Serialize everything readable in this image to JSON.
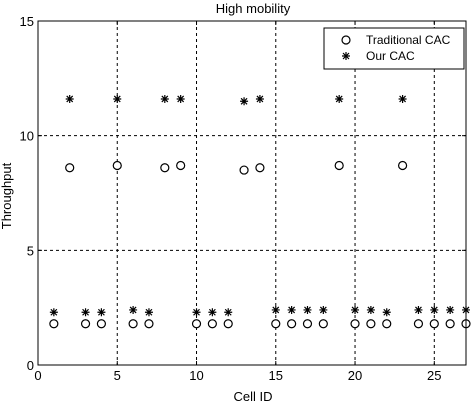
{
  "chart_data": {
    "type": "scatter",
    "title": "High mobility",
    "xlabel": "Cell ID",
    "ylabel": "Throughput",
    "xlim": [
      0,
      27
    ],
    "ylim": [
      0,
      15
    ],
    "xticks": [
      0,
      5,
      10,
      15,
      20,
      25
    ],
    "yticks": [
      0,
      5,
      10,
      15
    ],
    "grid": true,
    "legend_position": "top-right",
    "series": [
      {
        "name": "Traditional CAC",
        "marker": "circle",
        "points": [
          {
            "x": 1,
            "y": 1.8
          },
          {
            "x": 2,
            "y": 8.6
          },
          {
            "x": 3,
            "y": 1.8
          },
          {
            "x": 4,
            "y": 1.8
          },
          {
            "x": 5,
            "y": 8.7
          },
          {
            "x": 6,
            "y": 1.8
          },
          {
            "x": 7,
            "y": 1.8
          },
          {
            "x": 8,
            "y": 8.6
          },
          {
            "x": 9,
            "y": 8.7
          },
          {
            "x": 10,
            "y": 1.8
          },
          {
            "x": 11,
            "y": 1.8
          },
          {
            "x": 12,
            "y": 1.8
          },
          {
            "x": 13,
            "y": 8.5
          },
          {
            "x": 14,
            "y": 8.6
          },
          {
            "x": 15,
            "y": 1.8
          },
          {
            "x": 16,
            "y": 1.8
          },
          {
            "x": 17,
            "y": 1.8
          },
          {
            "x": 18,
            "y": 1.8
          },
          {
            "x": 19,
            "y": 8.7
          },
          {
            "x": 20,
            "y": 1.8
          },
          {
            "x": 21,
            "y": 1.8
          },
          {
            "x": 22,
            "y": 1.8
          },
          {
            "x": 23,
            "y": 8.7
          },
          {
            "x": 24,
            "y": 1.8
          },
          {
            "x": 25,
            "y": 1.8
          },
          {
            "x": 26,
            "y": 1.8
          },
          {
            "x": 27,
            "y": 1.8
          }
        ]
      },
      {
        "name": "Our CAC",
        "marker": "star",
        "points": [
          {
            "x": 1,
            "y": 2.3
          },
          {
            "x": 2,
            "y": 11.6
          },
          {
            "x": 3,
            "y": 2.3
          },
          {
            "x": 4,
            "y": 2.3
          },
          {
            "x": 5,
            "y": 11.6
          },
          {
            "x": 6,
            "y": 2.4
          },
          {
            "x": 7,
            "y": 2.3
          },
          {
            "x": 8,
            "y": 11.6
          },
          {
            "x": 9,
            "y": 11.6
          },
          {
            "x": 10,
            "y": 2.3
          },
          {
            "x": 11,
            "y": 2.3
          },
          {
            "x": 12,
            "y": 2.3
          },
          {
            "x": 13,
            "y": 11.5
          },
          {
            "x": 14,
            "y": 11.6
          },
          {
            "x": 15,
            "y": 2.4
          },
          {
            "x": 16,
            "y": 2.4
          },
          {
            "x": 17,
            "y": 2.4
          },
          {
            "x": 18,
            "y": 2.4
          },
          {
            "x": 19,
            "y": 11.6
          },
          {
            "x": 20,
            "y": 2.4
          },
          {
            "x": 21,
            "y": 2.4
          },
          {
            "x": 22,
            "y": 2.3
          },
          {
            "x": 23,
            "y": 11.6
          },
          {
            "x": 24,
            "y": 2.4
          },
          {
            "x": 25,
            "y": 2.4
          },
          {
            "x": 26,
            "y": 2.4
          },
          {
            "x": 27,
            "y": 2.4
          }
        ]
      }
    ]
  }
}
